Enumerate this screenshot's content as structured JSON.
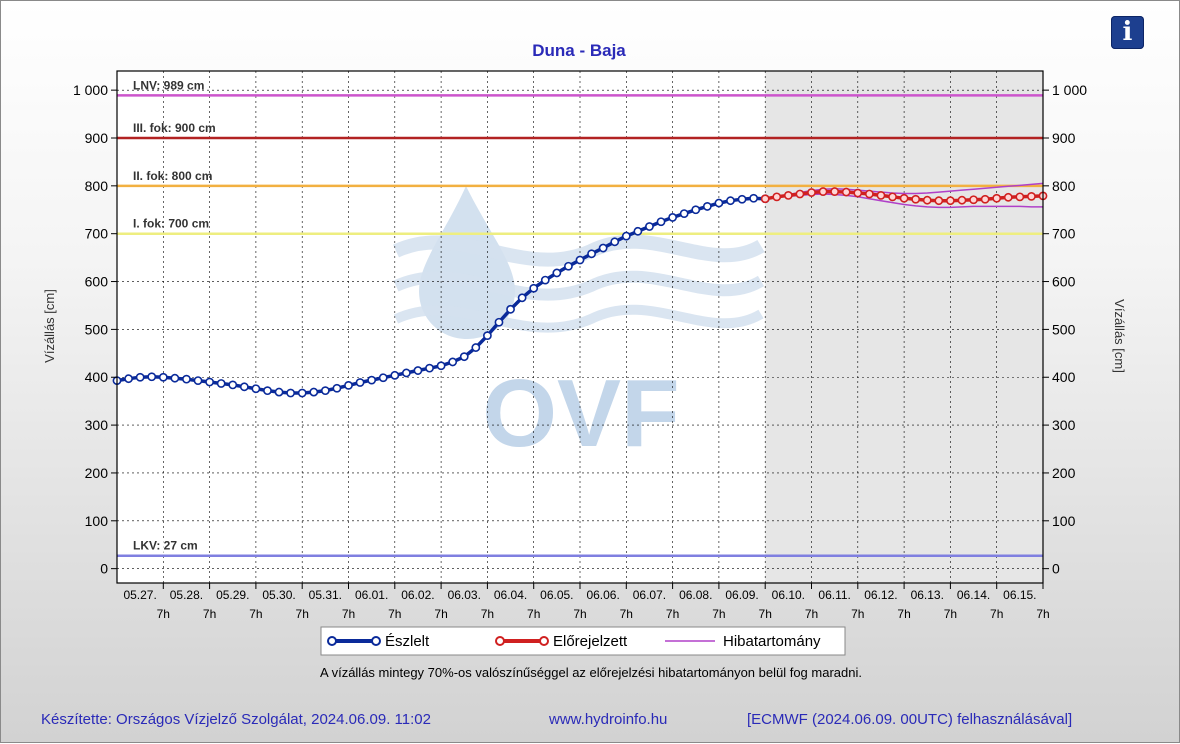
{
  "chart_data": {
    "type": "line",
    "title": "Duna - Baja",
    "ylabel_left": "Vízállás [cm]",
    "ylabel_right": "Vízállás [cm]",
    "ylim": [
      -30,
      1040
    ],
    "yticks": [
      "0",
      "100",
      "200",
      "300",
      "400",
      "500",
      "600",
      "700",
      "800",
      "900",
      "1 000"
    ],
    "ytick_values": [
      0,
      100,
      200,
      300,
      400,
      500,
      600,
      700,
      800,
      900,
      1000
    ],
    "x_start": "05.26. 7h",
    "x_end": "06.15. 7h",
    "x_tick_labels": [
      "05.27.",
      "05.28.",
      "05.29.",
      "05.30.",
      "05.31.",
      "06.01.",
      "06.02.",
      "06.03.",
      "06.04.",
      "06.05.",
      "06.06.",
      "06.07.",
      "06.08.",
      "06.09.",
      "06.10.",
      "06.11.",
      "06.12.",
      "06.13.",
      "06.14.",
      "06.15."
    ],
    "x_tick_sub": "7h",
    "forecast_start": "06.09. 7h",
    "reference_lines": [
      {
        "label": "LNV: 989 cm",
        "value": 989,
        "color": "#cc55cc"
      },
      {
        "label": "III. fok: 900 cm",
        "value": 900,
        "color": "#b22222"
      },
      {
        "label": "II. fok: 800 cm",
        "value": 800,
        "color": "#f2b040"
      },
      {
        "label": "I. fok: 700 cm",
        "value": 700,
        "color": "#eeee80"
      },
      {
        "label": "LKV: 27 cm",
        "value": 27,
        "color": "#7f7fe0"
      }
    ],
    "series": [
      {
        "name": "Észlelt",
        "color": "#0a2a9a",
        "x_days": [
          0,
          0.25,
          0.5,
          0.75,
          1,
          1.25,
          1.5,
          1.75,
          2,
          2.25,
          2.5,
          2.75,
          3,
          3.25,
          3.5,
          3.75,
          4,
          4.25,
          4.5,
          4.75,
          5,
          5.25,
          5.5,
          5.75,
          6,
          6.25,
          6.5,
          6.75,
          7,
          7.25,
          7.5,
          7.75,
          8,
          8.25,
          8.5,
          8.75,
          9,
          9.25,
          9.5,
          9.75,
          10,
          10.25,
          10.5,
          10.75,
          11,
          11.25,
          11.5,
          11.75,
          12,
          12.25,
          12.5,
          12.75,
          13,
          13.25,
          13.5,
          13.75,
          14
        ],
        "values": [
          393,
          397,
          400,
          401,
          400,
          398,
          396,
          393,
          390,
          387,
          384,
          380,
          376,
          372,
          369,
          367,
          367,
          369,
          372,
          377,
          383,
          389,
          394,
          399,
          404,
          409,
          414,
          419,
          424,
          432,
          443,
          462,
          487,
          515,
          542,
          566,
          586,
          603,
          618,
          632,
          645,
          658,
          670,
          683,
          695,
          705,
          715,
          725,
          734,
          742,
          750,
          757,
          764,
          769,
          772,
          774,
          773
        ]
      },
      {
        "name": "Előrejelzett",
        "color": "#d02020",
        "x_days": [
          14,
          14.25,
          14.5,
          14.75,
          15,
          15.25,
          15.5,
          15.75,
          16,
          16.25,
          16.5,
          16.75,
          17,
          17.25,
          17.5,
          17.75,
          18,
          18.25,
          18.5,
          18.75,
          19,
          19.25,
          19.5,
          19.75,
          20
        ],
        "values": [
          773,
          777,
          780,
          783,
          786,
          788,
          788,
          787,
          785,
          783,
          780,
          777,
          774,
          772,
          770,
          769,
          769,
          770,
          771,
          772,
          774,
          776,
          777,
          778,
          779
        ]
      },
      {
        "name": "Hibatartomány",
        "color": "#b040c8",
        "upper": [
          773,
          778,
          782,
          786,
          790,
          793,
          794,
          793,
          791,
          789,
          787,
          785,
          784,
          784,
          785,
          787,
          789,
          791,
          793,
          795,
          797,
          799,
          801,
          803,
          805
        ],
        "lower": [
          773,
          776,
          778,
          780,
          782,
          783,
          782,
          780,
          777,
          773,
          769,
          765,
          761,
          758,
          756,
          755,
          755,
          756,
          757,
          757,
          757,
          757,
          757,
          756,
          756
        ]
      }
    ],
    "legend": [
      "Észlelt",
      "Előrejelzett",
      "Hibatartomány"
    ],
    "legend_position": "bottom",
    "grid": true
  },
  "note": "A vízállás mintegy 70%-os valószínűséggel az előrejelzési hibatartományon belül fog maradni.",
  "footer": {
    "author": "Készítette: Országos Vízjelző Szolgálat, 2024.06.09. 11:02",
    "website": "www.hydroinfo.hu",
    "source": "[ECMWF (2024.06.09. 00UTC) felhasználásával]"
  },
  "info_button": {
    "label": "i",
    "icon": "info-icon"
  },
  "watermark": {
    "text": "OVF"
  }
}
